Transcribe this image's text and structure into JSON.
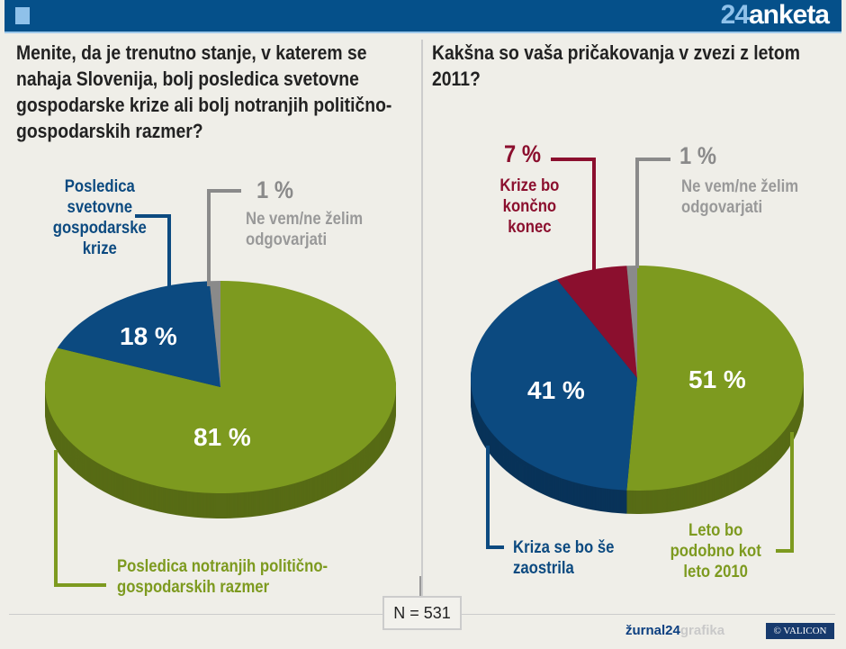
{
  "header": {
    "brand_num": "24",
    "brand_word": "anketa"
  },
  "colors": {
    "blue": "#0c4a80",
    "green": "#7d9a1f",
    "red": "#8b0f2e",
    "grey": "#8a8a8a",
    "header": "#05508a"
  },
  "chart_data": [
    {
      "type": "pie",
      "title": "Menite, da je trenutno stanje, v katerem se nahaja Slovenija, bolj posledica svetovne gospodarske krize ali bolj notranjih politično-gospodarskih razmer?",
      "slices": [
        {
          "label": "Posledica notranjih politično-gospodarskih razmer",
          "value": 81,
          "display": "81 %",
          "color": "#7d9a1f"
        },
        {
          "label": "Posledica svetovne gospodarske krize",
          "value": 18,
          "display": "18 %",
          "color": "#0c4a80"
        },
        {
          "label": "Ne vem/ne želim odgovarjati",
          "value": 1,
          "display": "1 %",
          "color": "#8a8a8a"
        }
      ]
    },
    {
      "type": "pie",
      "title": "Kakšna so vaša pričakovanja v zvezi z letom 2011?",
      "slices": [
        {
          "label": "Leto bo podobno kot leto 2010",
          "value": 51,
          "display": "51 %",
          "color": "#7d9a1f"
        },
        {
          "label": "Kriza se bo še zaostrila",
          "value": 41,
          "display": "41 %",
          "color": "#0c4a80"
        },
        {
          "label": "Krize bo končno konec",
          "value": 7,
          "display": "7 %",
          "color": "#8b0f2e"
        },
        {
          "label": "Ne vem/ne želim odgovarjati",
          "value": 1,
          "display": "1 %",
          "color": "#8a8a8a"
        }
      ]
    }
  ],
  "footer": {
    "n": "N = 531",
    "credit_a": "žurnal24",
    "credit_b": "grafika",
    "valicon": "VALICON"
  }
}
